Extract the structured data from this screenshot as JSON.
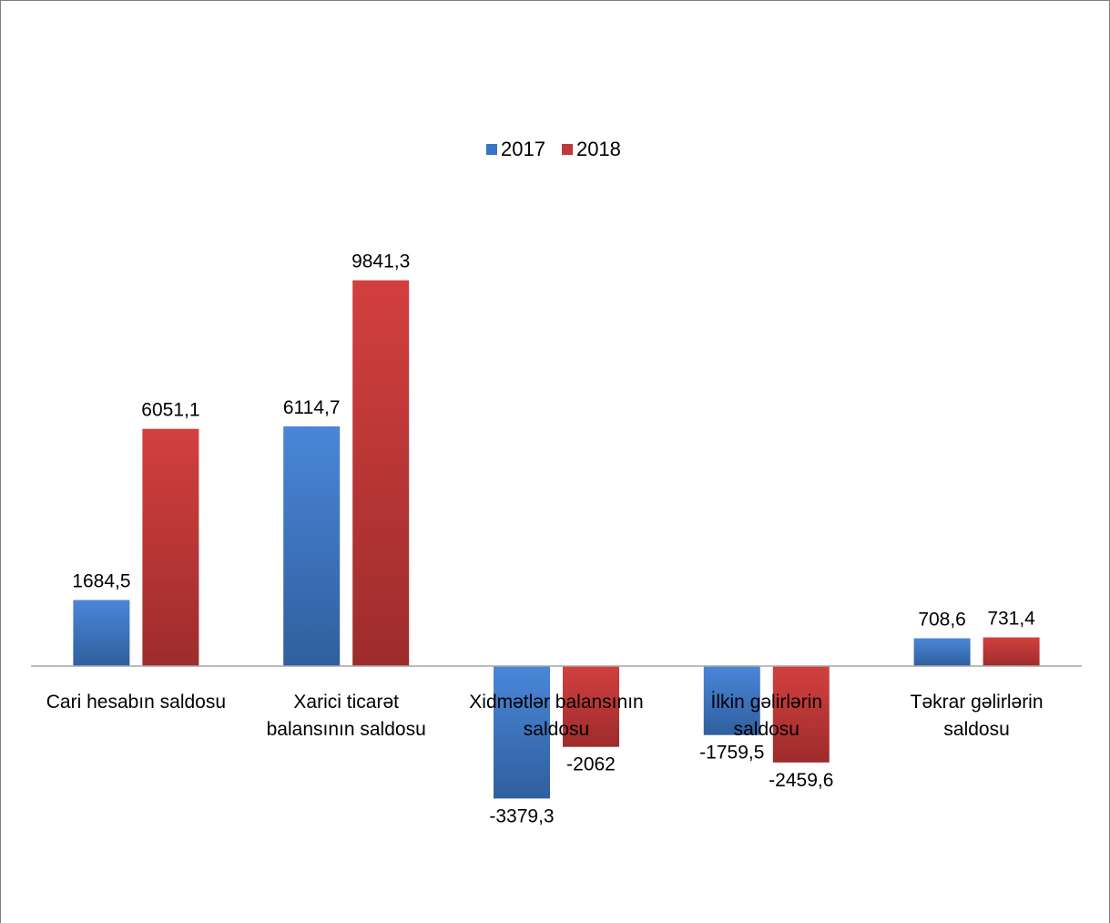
{
  "chart_data": {
    "type": "bar",
    "categories": [
      [
        "Cari hesabın saldosu"
      ],
      [
        "Xarici ticarət",
        "balansının saldosu"
      ],
      [
        "Xidmətlər balansının",
        "saldosu"
      ],
      [
        "İlkin gəlirlərin",
        "saldosu"
      ],
      [
        "Təkrar gəlirlərin",
        "saldosu"
      ]
    ],
    "series": [
      {
        "name": "2017",
        "color": "#3a74c4",
        "values": [
          1684.5,
          6114.7,
          -3379.3,
          -1759.5,
          708.6
        ],
        "labels": [
          "1684,5",
          "6114,7",
          "-3379,3",
          "-1759,5",
          "708,6"
        ]
      },
      {
        "name": "2018",
        "color": "#c0393b",
        "values": [
          6051.1,
          9841.3,
          -2062,
          -2459.6,
          731.4
        ],
        "labels": [
          "6051,1",
          "9841,3",
          "-2062",
          "-2459,6",
          "731,4"
        ]
      }
    ],
    "legend_position": "top-center",
    "grid": false
  }
}
